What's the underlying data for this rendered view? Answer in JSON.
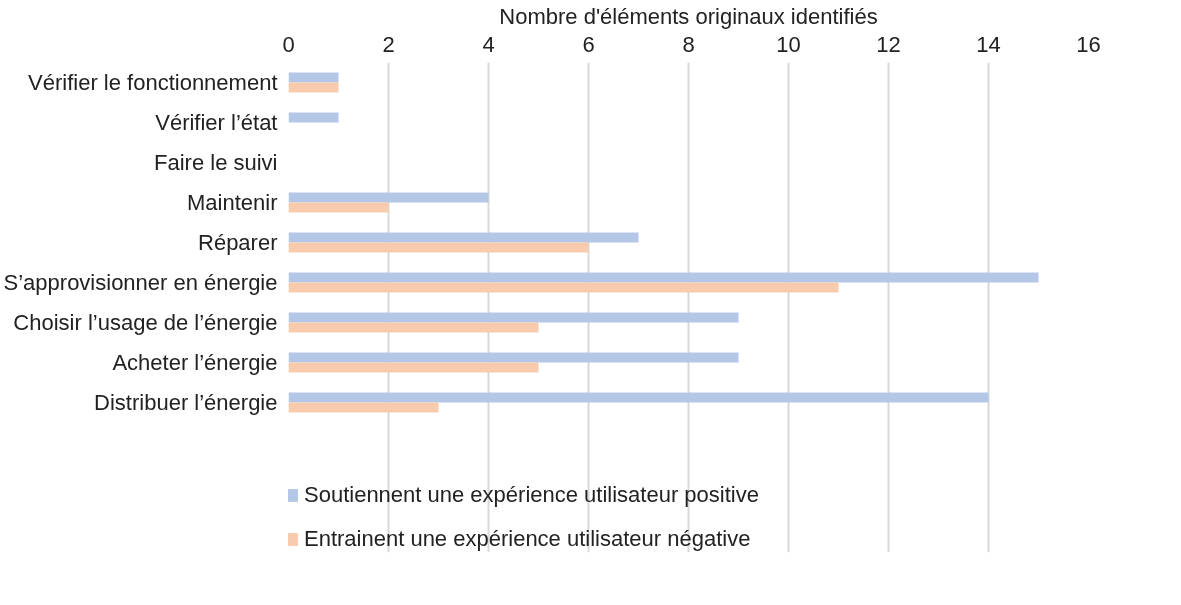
{
  "chart_data": {
    "type": "bar",
    "orientation": "horizontal",
    "xlabel": "Nombre d'éléments originaux identifiés",
    "categories": [
      "Vérifier le fonctionnement",
      "Vérifier l’état",
      "Faire le suivi",
      "Maintenir",
      "Réparer",
      "S’approvisionner en énergie",
      "Choisir l’usage de l’énergie",
      "Acheter l’énergie",
      "Distribuer l’énergie"
    ],
    "series": [
      {
        "name": "Soutiennent une expérience utilisateur positive",
        "color": "#b4c7e7",
        "values": [
          1,
          1,
          0,
          4,
          7,
          15,
          9,
          9,
          14
        ]
      },
      {
        "name": "Entrainent une expérience utilisateur négative",
        "color": "#f8cbad",
        "values": [
          1,
          0,
          0,
          2,
          6,
          11,
          5,
          5,
          3
        ]
      }
    ],
    "xlim": [
      0,
      16
    ],
    "xticks": [
      0,
      2,
      4,
      6,
      8,
      10,
      12,
      14,
      16
    ],
    "grid": "x",
    "legend": "bottom"
  }
}
